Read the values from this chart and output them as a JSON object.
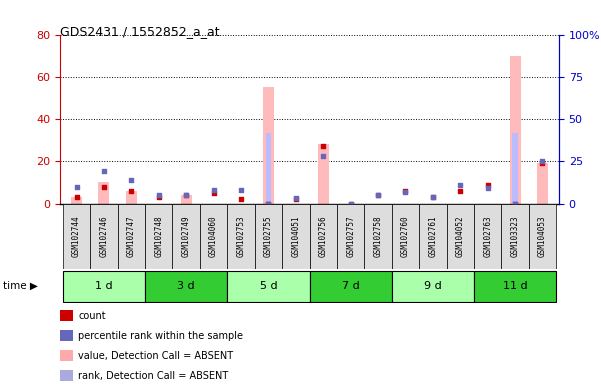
{
  "title": "GDS2431 / 1552852_a_at",
  "samples": [
    "GSM102744",
    "GSM102746",
    "GSM102747",
    "GSM102748",
    "GSM102749",
    "GSM104060",
    "GSM102753",
    "GSM102755",
    "GSM104051",
    "GSM102756",
    "GSM102757",
    "GSM102758",
    "GSM102760",
    "GSM102761",
    "GSM104052",
    "GSM102763",
    "GSM103323",
    "GSM104053"
  ],
  "count_values": [
    3,
    8,
    6,
    3,
    4,
    5,
    2,
    0,
    2,
    27,
    0,
    4,
    6,
    3,
    6,
    9,
    0,
    19
  ],
  "rank_values": [
    10,
    19,
    14,
    5,
    5,
    8,
    8,
    0,
    3,
    28,
    0,
    5,
    7,
    4,
    11,
    9,
    0,
    25
  ],
  "pink_bar_values": [
    3,
    10,
    6,
    0,
    4,
    0,
    0,
    55,
    0,
    28,
    0,
    0,
    0,
    0,
    0,
    0,
    70,
    19
  ],
  "blue_bar_values": [
    0,
    0,
    0,
    0,
    0,
    0,
    0,
    42,
    0,
    0,
    0,
    0,
    0,
    0,
    0,
    0,
    42,
    0
  ],
  "time_groups": [
    {
      "label": "1 d",
      "start": 0,
      "end": 3,
      "light": true
    },
    {
      "label": "3 d",
      "start": 3,
      "end": 6,
      "light": false
    },
    {
      "label": "5 d",
      "start": 6,
      "end": 9,
      "light": true
    },
    {
      "label": "7 d",
      "start": 9,
      "end": 12,
      "light": false
    },
    {
      "label": "9 d",
      "start": 12,
      "end": 15,
      "light": true
    },
    {
      "label": "11 d",
      "start": 15,
      "end": 18,
      "light": false
    }
  ],
  "color_light_green": "#aaffaa",
  "color_dark_green": "#33cc33",
  "ylim_left": [
    0,
    80
  ],
  "ylim_right": [
    0,
    100
  ],
  "yticks_left": [
    0,
    20,
    40,
    60,
    80
  ],
  "yticks_right": [
    0,
    25,
    50,
    75,
    100
  ],
  "background_color": "#ffffff",
  "left_axis_color": "#cc0000",
  "right_axis_color": "#0000cc",
  "legend_labels": [
    "count",
    "percentile rank within the sample",
    "value, Detection Call = ABSENT",
    "rank, Detection Call = ABSENT"
  ],
  "legend_colors": [
    "#cc0000",
    "#6666bb",
    "#ffaaaa",
    "#aaaadd"
  ]
}
